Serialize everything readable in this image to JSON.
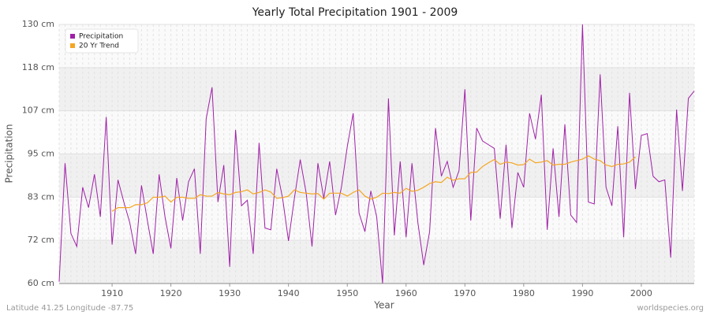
{
  "chart_data": {
    "type": "line",
    "title": "Yearly Total Precipitation 1901 - 2009",
    "xlabel": "Year",
    "ylabel": "Precipitation",
    "footer_left": "Latitude 41.25 Longitude -87.75",
    "footer_right": "worldspecies.org",
    "x": [
      1901,
      1902,
      1903,
      1904,
      1905,
      1906,
      1907,
      1908,
      1909,
      1910,
      1911,
      1912,
      1913,
      1914,
      1915,
      1916,
      1917,
      1918,
      1919,
      1920,
      1921,
      1922,
      1923,
      1924,
      1925,
      1926,
      1927,
      1928,
      1929,
      1930,
      1931,
      1932,
      1933,
      1934,
      1935,
      1936,
      1937,
      1938,
      1939,
      1940,
      1941,
      1942,
      1943,
      1944,
      1945,
      1946,
      1947,
      1948,
      1949,
      1950,
      1951,
      1952,
      1953,
      1954,
      1955,
      1956,
      1957,
      1958,
      1959,
      1960,
      1961,
      1962,
      1963,
      1964,
      1965,
      1966,
      1967,
      1968,
      1969,
      1970,
      1971,
      1972,
      1973,
      1974,
      1975,
      1976,
      1977,
      1978,
      1979,
      1980,
      1981,
      1982,
      1983,
      1984,
      1985,
      1986,
      1987,
      1988,
      1989,
      1990,
      1991,
      1992,
      1993,
      1994,
      1995,
      1996,
      1997,
      1998,
      1999,
      2000,
      2001,
      2002,
      2003,
      2004,
      2005,
      2006,
      2007,
      2008,
      2009
    ],
    "series": [
      {
        "name": "Precipitation",
        "color": "#a020a8",
        "values": [
          60.5,
          92.5,
          73.5,
          70,
          86,
          80.5,
          89.5,
          78,
          105,
          70.5,
          88,
          82,
          76.5,
          68,
          86.5,
          77,
          68,
          89.5,
          78,
          69.5,
          88.5,
          77,
          87.5,
          91,
          68,
          104.5,
          113,
          82,
          92,
          64.5,
          101.5,
          81,
          82.5,
          68,
          98,
          75,
          74.5,
          91,
          83,
          71.5,
          83,
          93.5,
          84.5,
          70,
          92.5,
          83,
          93,
          78.5,
          86,
          97,
          106,
          79,
          74,
          85,
          78,
          60,
          110,
          73,
          93,
          72.5,
          92.5,
          76.5,
          65,
          74,
          102,
          89,
          93,
          86,
          90.5,
          112.5,
          77,
          102,
          98.5,
          97.5,
          96.5,
          77.5,
          97.5,
          75,
          90,
          86,
          106,
          99,
          111,
          74.5,
          96.5,
          78,
          103,
          78.5,
          76.5,
          130,
          82,
          81.5,
          116.5,
          86,
          81,
          102.5,
          72.5,
          111.5,
          85.5,
          100,
          100.5,
          89,
          87.5,
          88,
          67,
          107,
          85,
          110,
          112
        ]
      },
      {
        "name": "20 Yr Trend",
        "color": "#f5a623",
        "values": [
          null,
          null,
          null,
          null,
          null,
          null,
          null,
          null,
          null,
          79.5,
          80.5,
          80.5,
          80.5,
          81.3,
          81.3,
          81.8,
          83.3,
          83.3,
          83.6,
          82,
          83.3,
          83.3,
          83,
          83,
          84,
          83.6,
          83.6,
          84.6,
          84.2,
          84,
          84.6,
          84.8,
          85.3,
          84.2,
          84.6,
          85.3,
          84.7,
          83,
          83.2,
          83.6,
          85.3,
          84.6,
          84.4,
          84.2,
          84.3,
          82.8,
          84.4,
          84.4,
          84.4,
          83.6,
          84.6,
          85.3,
          83.6,
          82.8,
          83.3,
          84.4,
          84.3,
          84.6,
          84.4,
          85.7,
          84.9,
          85.2,
          86,
          87,
          87.5,
          87.3,
          88.7,
          87.9,
          88.3,
          88.3,
          90,
          90.1,
          91.6,
          92.6,
          93.5,
          92.2,
          92.8,
          92.6,
          92,
          92.1,
          93.6,
          92.6,
          92.8,
          93.2,
          92,
          92.2,
          92.2,
          92.8,
          93.2,
          93.6,
          94.5,
          93.6,
          93.2,
          92,
          91.6,
          92.2,
          92.3,
          92.8,
          94.2,
          null,
          null,
          null,
          null,
          null,
          null,
          null,
          null,
          null,
          null
        ]
      }
    ],
    "xlim": [
      1901,
      2009
    ],
    "xticks": [
      1910,
      1920,
      1930,
      1940,
      1950,
      1960,
      1970,
      1980,
      1990,
      2000
    ],
    "ylim": [
      60,
      130
    ],
    "yticks": [
      {
        "value": 60,
        "label": "60 cm"
      },
      {
        "value": 71.67,
        "label": "72 cm"
      },
      {
        "value": 83.33,
        "label": "83 cm"
      },
      {
        "value": 95,
        "label": "95 cm"
      },
      {
        "value": 106.67,
        "label": "107 cm"
      },
      {
        "value": 118.33,
        "label": "118 cm"
      },
      {
        "value": 130,
        "label": "130 cm"
      }
    ],
    "grid": true,
    "legend": "top-left"
  }
}
